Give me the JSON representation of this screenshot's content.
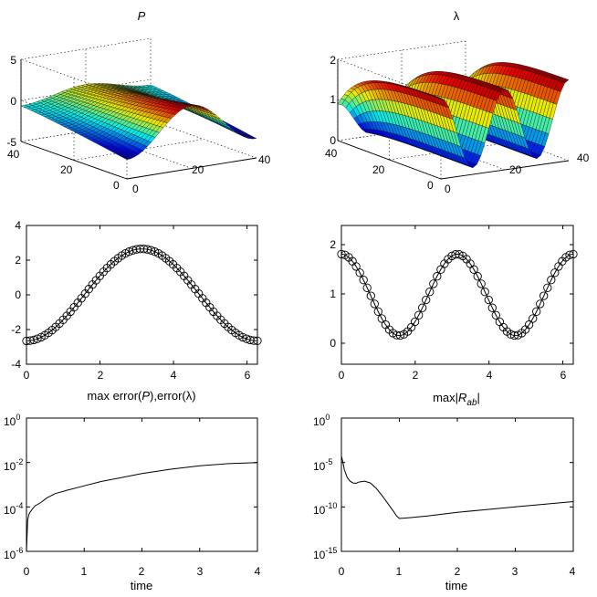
{
  "titles": {
    "p_title": "P",
    "lambda_title": "λ",
    "mid_left_caption": "max error(",
    "mid_left_caption_p": "P",
    "mid_left_caption_rest": "),error(λ)",
    "mid_right_caption_pre": "max|",
    "mid_right_caption_r": "R",
    "mid_right_caption_sub": "ab",
    "mid_right_caption_post": "|"
  },
  "colors": {
    "axis": "#000000",
    "grid": "#000000",
    "surface_low": "#1a2a9c",
    "surface_high": "#c81e1e"
  },
  "chart_data": [
    {
      "id": "surface_P",
      "type": "surface3d",
      "title": "P",
      "zticks": [
        "5",
        "0",
        "-5"
      ],
      "zlim": [
        -5,
        5
      ],
      "xticks": [
        "0",
        "20",
        "40"
      ],
      "yticks": [
        "0",
        "20",
        "40"
      ],
      "grid": true
    },
    {
      "id": "surface_lambda",
      "type": "surface3d",
      "title": "λ",
      "zticks": [
        "2",
        "1",
        "0"
      ],
      "zlim": [
        0,
        2
      ],
      "xticks": [
        "0",
        "20",
        "40"
      ],
      "yticks": [
        "0",
        "20",
        "40"
      ],
      "grid": true
    },
    {
      "id": "profile_P",
      "type": "line_markers",
      "function": "-2.65*cos(x)",
      "xlim": [
        0,
        6.2832
      ],
      "ylim": [
        -4,
        4
      ],
      "xticks": [
        "0",
        "2",
        "4",
        "6"
      ],
      "yticks": [
        "4",
        "2",
        "0",
        "-2",
        "-4"
      ],
      "n_points": 64
    },
    {
      "id": "profile_lambda",
      "type": "line_markers",
      "function": "1 + 0.85*cos(2x)",
      "xlim": [
        0,
        6.2832
      ],
      "ylim": [
        -0.45,
        2.45
      ],
      "xticks": [
        "0",
        "2",
        "4",
        "6"
      ],
      "yticks": [
        "2",
        "1",
        "0"
      ],
      "n_points": 64
    },
    {
      "id": "error_P_lambda",
      "type": "line",
      "yscale": "log",
      "xlabel": "time",
      "xlim": [
        0,
        4
      ],
      "ylim_exp": [
        -6,
        0
      ],
      "xticks": [
        "0",
        "1",
        "2",
        "3",
        "4"
      ],
      "ytick_base": "10",
      "ytick_exps": [
        "0",
        "-2",
        "-4",
        "-6"
      ],
      "series": [
        {
          "name": "max error",
          "x": [
            0.0,
            0.02,
            0.04,
            0.06,
            0.1,
            0.15,
            0.25,
            0.35,
            0.5,
            0.7,
            1.0,
            1.3,
            1.6,
            2.0,
            2.5,
            3.0,
            3.5,
            4.0
          ],
          "log10y": [
            -6.0,
            -4.6,
            -4.35,
            -4.25,
            -4.1,
            -3.95,
            -3.8,
            -3.6,
            -3.4,
            -3.25,
            -3.05,
            -2.85,
            -2.7,
            -2.5,
            -2.3,
            -2.15,
            -2.05,
            -2.0
          ]
        }
      ]
    },
    {
      "id": "max_R_ab",
      "type": "line",
      "yscale": "log",
      "xlabel": "time",
      "xlim": [
        0,
        4
      ],
      "ylim_exp": [
        -15,
        0
      ],
      "xticks": [
        "0",
        "1",
        "2",
        "3",
        "4"
      ],
      "ytick_base": "10",
      "ytick_exps": [
        "0",
        "-5",
        "-10",
        "-15"
      ],
      "series": [
        {
          "name": "max|R_ab|",
          "x": [
            0.0,
            0.02,
            0.05,
            0.1,
            0.15,
            0.2,
            0.25,
            0.3,
            0.4,
            0.5,
            0.6,
            0.7,
            0.8,
            0.9,
            0.95,
            1.0,
            1.2,
            1.5,
            2.0,
            2.5,
            3.0,
            3.5,
            4.0
          ],
          "log10y": [
            -4.3,
            -4.8,
            -5.8,
            -6.7,
            -7.1,
            -7.3,
            -7.35,
            -7.2,
            -7.1,
            -7.3,
            -7.9,
            -8.7,
            -9.6,
            -10.5,
            -11.0,
            -11.3,
            -11.2,
            -11.0,
            -10.6,
            -10.3,
            -10.0,
            -9.7,
            -9.4
          ]
        }
      ]
    }
  ]
}
